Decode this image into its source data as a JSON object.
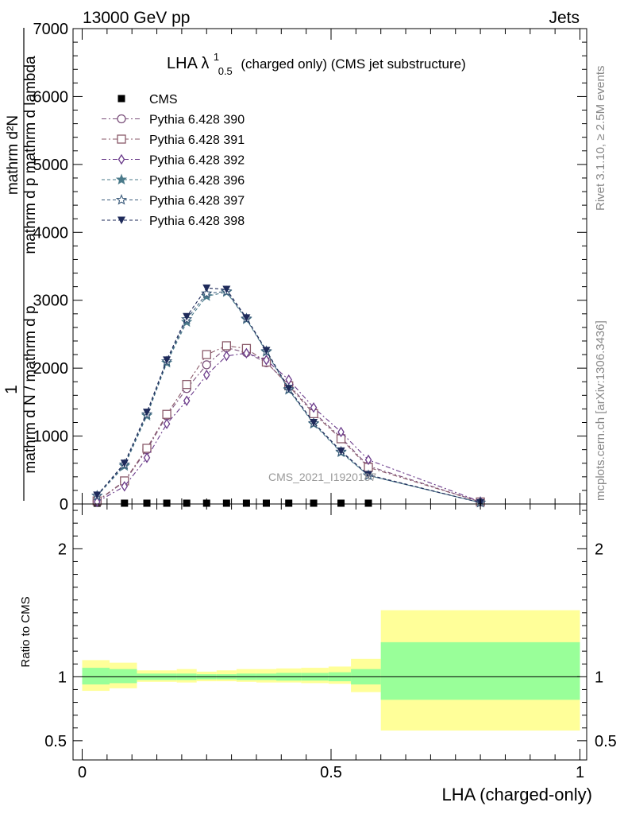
{
  "header": {
    "left": "13000 GeV pp",
    "right": "Jets"
  },
  "side_labels": {
    "rivet": "Rivet 3.1.10, ≥ 2.5M events",
    "mcplots": "mcplots.cern.ch [arXiv:1306.3436]"
  },
  "chart_data": [
    {
      "type": "line",
      "panel": "main",
      "title": "LHA λ",
      "title_sup": "1",
      "title_sub": "0.5",
      "title_rest": "(charged only) (CMS jet substructure)",
      "watermark": "CMS_2021_I1920187",
      "ylabel_top": "1",
      "ylabel_num": "mathrm d N / mathrm d p",
      "ylabel_den": "mathrm d N / mathrm d p",
      "ylabel_full_num": "mathrm d²N",
      "ylabel_full_den": "mathrm d p mathrm d lambda",
      "ylabel_den_sub": "T",
      "ylim": [
        0,
        7000
      ],
      "yticks": [
        0,
        1000,
        2000,
        3000,
        4000,
        5000,
        6000,
        7000
      ],
      "ytick_labels": [
        "0",
        "1000",
        "2000",
        "3000",
        "4000",
        "5000",
        "6000",
        "7000"
      ],
      "xlim": [
        0,
        1
      ],
      "x": [
        0.03,
        0.085,
        0.13,
        0.17,
        0.21,
        0.25,
        0.29,
        0.33,
        0.37,
        0.415,
        0.465,
        0.52,
        0.575,
        0.8
      ],
      "series": [
        {
          "name": "CMS",
          "marker": "square",
          "color": "#000000",
          "x": [
            0.03,
            0.085,
            0.13,
            0.17,
            0.21,
            0.25,
            0.29,
            0.33,
            0.37,
            0.415,
            0.465,
            0.52,
            0.575
          ],
          "values": [
            0,
            0,
            0,
            0,
            0,
            0,
            0,
            0,
            0,
            0,
            0,
            0,
            0
          ]
        },
        {
          "name": "Pythia 6.428 390",
          "marker": "circle-open",
          "color": "#7a4f7a",
          "dash": "6,3,2,3",
          "values": [
            40,
            330,
            800,
            1300,
            1700,
            2050,
            2300,
            2230,
            2080,
            1760,
            1350,
            980,
            560,
            30
          ]
        },
        {
          "name": "Pythia 6.428 391",
          "marker": "square-open",
          "color": "#8a5a6a",
          "dash": "6,3,2,3",
          "values": [
            45,
            340,
            820,
            1320,
            1760,
            2200,
            2330,
            2290,
            2090,
            1740,
            1330,
            960,
            540,
            30
          ]
        },
        {
          "name": "Pythia 6.428 392",
          "marker": "diamond-open",
          "color": "#6a3a8a",
          "dash": "6,3,2,3",
          "values": [
            30,
            260,
            680,
            1180,
            1520,
            1900,
            2180,
            2220,
            2120,
            1830,
            1420,
            1060,
            650,
            35
          ]
        },
        {
          "name": "Pythia 6.428 396",
          "marker": "star-filled",
          "color": "#4a7a8a",
          "dash": "4,3",
          "values": [
            120,
            560,
            1300,
            2080,
            2680,
            3060,
            3120,
            2720,
            2240,
            1680,
            1180,
            760,
            420,
            20
          ]
        },
        {
          "name": "Pythia 6.428 397",
          "marker": "star-open",
          "color": "#3a5a7a",
          "dash": "4,3",
          "values": [
            120,
            580,
            1320,
            2100,
            2720,
            3100,
            3130,
            2730,
            2250,
            1690,
            1190,
            770,
            420,
            20
          ]
        },
        {
          "name": "Pythia 6.428 398",
          "marker": "triangle-down-filled",
          "color": "#1e2a5a",
          "dash": "4,3",
          "values": [
            130,
            600,
            1350,
            2120,
            2760,
            3180,
            3160,
            2740,
            2260,
            1700,
            1200,
            780,
            430,
            20
          ]
        }
      ]
    },
    {
      "type": "area",
      "panel": "ratio",
      "ylabel": "Ratio to CMS",
      "xlabel": "LHA (charged-only)",
      "ylim": [
        0.35,
        2.35
      ],
      "yticks": [
        0.5,
        1,
        2
      ],
      "ytick_labels": [
        "0.5",
        "1",
        "2"
      ],
      "xticks": [
        0,
        0.5,
        1
      ],
      "xtick_labels": [
        "0",
        "0.5",
        "1"
      ],
      "bins": [
        {
          "x0": 0.0,
          "x1": 0.055,
          "inner": [
            0.94,
            1.07
          ],
          "outer": [
            0.89,
            1.13
          ]
        },
        {
          "x0": 0.055,
          "x1": 0.11,
          "inner": [
            0.95,
            1.06
          ],
          "outer": [
            0.91,
            1.11
          ]
        },
        {
          "x0": 0.11,
          "x1": 0.19,
          "inner": [
            0.975,
            1.025
          ],
          "outer": [
            0.96,
            1.05
          ]
        },
        {
          "x0": 0.19,
          "x1": 0.23,
          "inner": [
            0.975,
            1.025
          ],
          "outer": [
            0.955,
            1.06
          ]
        },
        {
          "x0": 0.23,
          "x1": 0.27,
          "inner": [
            0.98,
            1.02
          ],
          "outer": [
            0.965,
            1.04
          ]
        },
        {
          "x0": 0.27,
          "x1": 0.31,
          "inner": [
            0.98,
            1.02
          ],
          "outer": [
            0.965,
            1.05
          ]
        },
        {
          "x0": 0.31,
          "x1": 0.35,
          "inner": [
            0.975,
            1.025
          ],
          "outer": [
            0.96,
            1.06
          ]
        },
        {
          "x0": 0.35,
          "x1": 0.39,
          "inner": [
            0.975,
            1.025
          ],
          "outer": [
            0.955,
            1.06
          ]
        },
        {
          "x0": 0.39,
          "x1": 0.44,
          "inner": [
            0.97,
            1.03
          ],
          "outer": [
            0.955,
            1.065
          ]
        },
        {
          "x0": 0.44,
          "x1": 0.495,
          "inner": [
            0.97,
            1.03
          ],
          "outer": [
            0.95,
            1.07
          ]
        },
        {
          "x0": 0.495,
          "x1": 0.54,
          "inner": [
            0.965,
            1.035
          ],
          "outer": [
            0.945,
            1.08
          ]
        },
        {
          "x0": 0.54,
          "x1": 0.6,
          "inner": [
            0.94,
            1.06
          ],
          "outer": [
            0.88,
            1.14
          ]
        },
        {
          "x0": 0.6,
          "x1": 1.0,
          "inner": [
            0.82,
            1.27
          ],
          "outer": [
            0.58,
            1.52
          ]
        }
      ]
    }
  ]
}
